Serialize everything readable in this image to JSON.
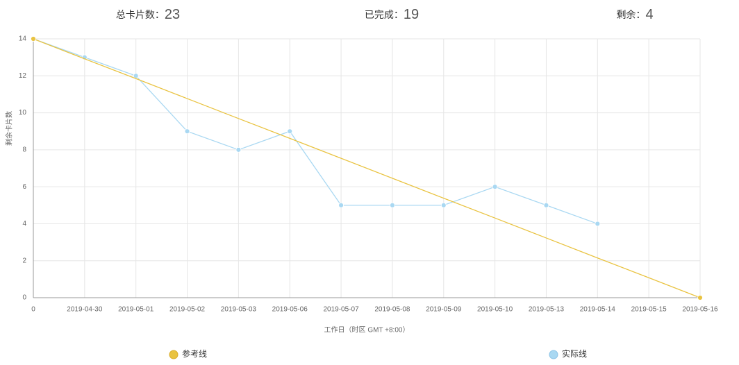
{
  "header": {
    "stats": [
      {
        "label": "总卡片数：",
        "value": 23
      },
      {
        "label": "已完成：",
        "value": 19
      },
      {
        "label": "剩余：",
        "value": 4
      }
    ]
  },
  "chart_data": {
    "type": "line",
    "y_label": "剩余卡片数",
    "x_label": "工作日（时区 GMT +8:00）",
    "categories": [
      "0",
      "2019-04-30",
      "2019-05-01",
      "2019-05-02",
      "2019-05-03",
      "2019-05-06",
      "2019-05-07",
      "2019-05-08",
      "2019-05-09",
      "2019-05-10",
      "2019-05-13",
      "2019-05-14",
      "2019-05-15",
      "2019-05-16"
    ],
    "series": [
      {
        "name": "参考线",
        "color": "#e9c341",
        "values": [
          14,
          12.92,
          11.85,
          10.77,
          9.69,
          8.62,
          7.54,
          6.46,
          5.38,
          4.31,
          3.23,
          2.15,
          1.08,
          0
        ]
      },
      {
        "name": "实际线",
        "color": "#a9d8f2",
        "values": [
          14,
          13,
          12,
          9,
          8,
          9,
          5,
          5,
          5,
          6,
          5,
          4,
          null,
          null
        ]
      }
    ],
    "ylim": [
      0,
      14
    ],
    "yticks": [
      0,
      2,
      4,
      6,
      8,
      10,
      12,
      14
    ],
    "grid": true
  }
}
